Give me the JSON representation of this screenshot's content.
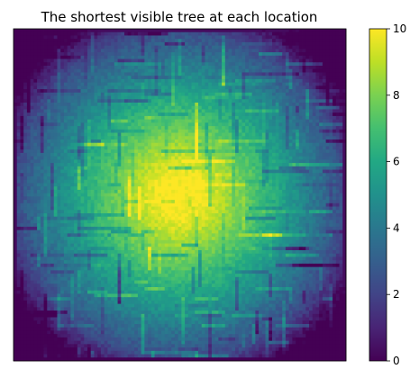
{
  "chart_data": {
    "type": "heatmap",
    "title": "The shortest visible tree at each location",
    "xlabel": "",
    "ylabel": "",
    "grid_size": [
      99,
      99
    ],
    "value_range": [
      0,
      10
    ],
    "colormap": "viridis",
    "axes_ticks_visible": false,
    "colorbar": {
      "position": "right",
      "ticks": [
        0,
        2,
        4,
        6,
        8,
        10
      ],
      "tick_labels": [
        "0",
        "2",
        "4",
        "6",
        "8",
        "10"
      ]
    },
    "description_of_field": {
      "center_value": 10,
      "edge_value": 0,
      "pattern": "values rise from the border toward a central plateau, with horizontal and vertical streaks"
    }
  }
}
